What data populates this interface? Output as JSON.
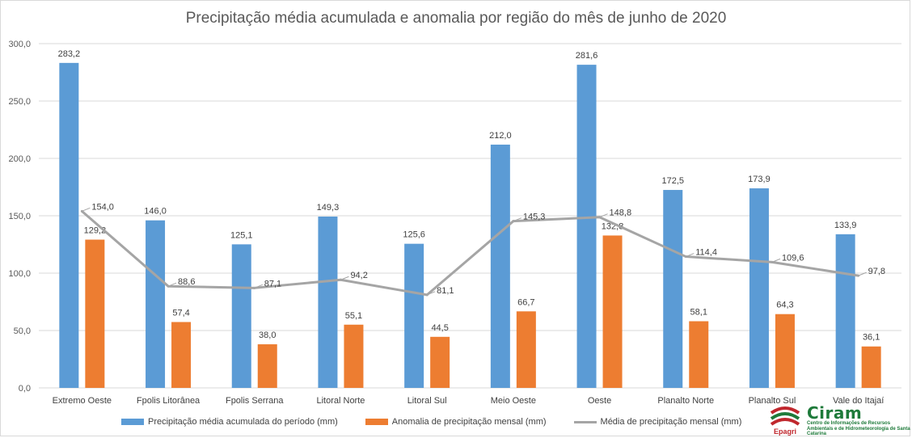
{
  "chart_data": {
    "type": "bar",
    "title": "Precipitação média acumulada e anomalia por região do mês de junho de 2020",
    "categories": [
      "Extremo Oeste",
      "Fpolis Litorânea",
      "Fpolis Serrana",
      "Litoral Norte",
      "Litoral Sul",
      "Meio Oeste",
      "Oeste",
      "Planalto Norte",
      "Planalto Sul",
      "Vale do Itajaí"
    ],
    "ylim": [
      0,
      300
    ],
    "yticks": [
      0,
      50,
      100,
      150,
      200,
      250,
      300
    ],
    "ytick_labels": [
      "0,0",
      "50,0",
      "100,0",
      "150,0",
      "200,0",
      "250,0",
      "300,0"
    ],
    "grid": true,
    "legend_position": "bottom",
    "series": [
      {
        "name": "Precipitação média acumulada do período (mm)",
        "type": "bar",
        "color": "#5b9bd5",
        "values": [
          283.2,
          146.0,
          125.1,
          149.3,
          125.6,
          212.0,
          281.6,
          172.5,
          173.9,
          133.9
        ],
        "labels": [
          "283,2",
          "146,0",
          "125,1",
          "149,3",
          "125,6",
          "212,0",
          "281,6",
          "172,5",
          "173,9",
          "133,9"
        ]
      },
      {
        "name": "Anomalia de precipitação mensal (mm)",
        "type": "bar",
        "color": "#ed7d31",
        "values": [
          129.2,
          57.4,
          38.0,
          55.1,
          44.5,
          66.7,
          132.8,
          58.1,
          64.3,
          36.1
        ],
        "labels": [
          "129,2",
          "57,4",
          "38,0",
          "55,1",
          "44,5",
          "66,7",
          "132,8",
          "58,1",
          "64,3",
          "36,1"
        ]
      },
      {
        "name": "Média de precipitação mensal (mm)",
        "type": "line",
        "color": "#a5a5a5",
        "values": [
          154.0,
          88.6,
          87.1,
          94.2,
          81.1,
          145.3,
          148.8,
          114.4,
          109.6,
          97.8
        ],
        "labels": [
          "154,0",
          "88,6",
          "87,1",
          "94,2",
          "81,1",
          "145,3",
          "148,8",
          "114,4",
          "109,6",
          "97,8"
        ]
      }
    ]
  },
  "logo": {
    "name": "Ciram",
    "subtitle": "Centro de Informações de Recursos Ambientais e de Hidrometeorologia de Santa Catarina",
    "org": "Epagri"
  }
}
